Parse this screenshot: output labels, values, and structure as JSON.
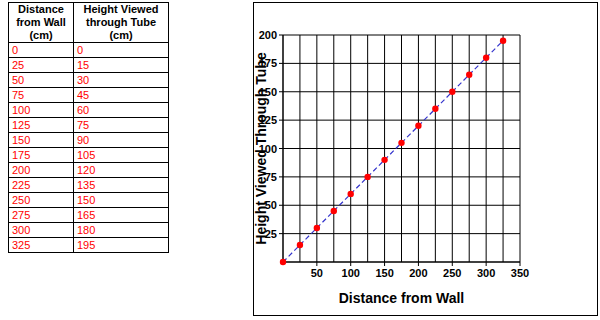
{
  "table": {
    "headers": [
      "Distance from Wall (cm)",
      "Height Viewed through Tube (cm)"
    ],
    "rows": [
      [
        0,
        0
      ],
      [
        25,
        15
      ],
      [
        50,
        30
      ],
      [
        75,
        45
      ],
      [
        100,
        60
      ],
      [
        125,
        75
      ],
      [
        150,
        90
      ],
      [
        175,
        105
      ],
      [
        200,
        120
      ],
      [
        225,
        135
      ],
      [
        250,
        150
      ],
      [
        275,
        165
      ],
      [
        300,
        180
      ],
      [
        325,
        195
      ]
    ]
  },
  "chart_data": {
    "type": "scatter",
    "x_label": "Distance from Wall",
    "y_label": "Height Viewed Through Tube",
    "series": [
      {
        "type": "scatter",
        "color": "#ff0000",
        "marker": "circle",
        "x": [
          0,
          25,
          50,
          75,
          100,
          125,
          150,
          175,
          200,
          225,
          250,
          275,
          300,
          325
        ],
        "values": [
          0,
          15,
          30,
          45,
          60,
          75,
          90,
          105,
          120,
          135,
          150,
          165,
          180,
          195
        ]
      },
      {
        "type": "line",
        "color": "#3333cc",
        "line_style": "dashed",
        "x": [
          0,
          325
        ],
        "values": [
          0,
          195
        ]
      }
    ],
    "xlim": [
      0,
      350
    ],
    "xticks": [
      50,
      100,
      150,
      200,
      250,
      300,
      350
    ],
    "ylim": [
      0,
      200
    ],
    "yticks": [
      25,
      50,
      75,
      100,
      125,
      150,
      175,
      200
    ],
    "grid": true
  }
}
